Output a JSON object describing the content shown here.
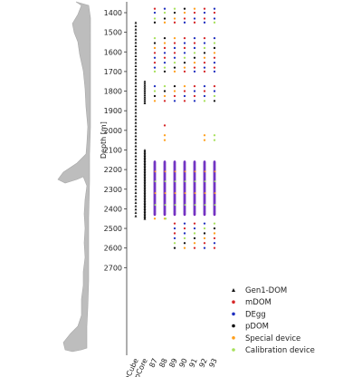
{
  "chart_data": {
    "type": "scatter",
    "ylabel": "Depth [m]",
    "ylim": [
      1380,
      2760
    ],
    "y_inverted": true,
    "y_ticks": [
      1400,
      1500,
      1600,
      1700,
      1800,
      1900,
      2000,
      2100,
      2200,
      2300,
      2400,
      2500,
      2600,
      2700
    ],
    "strings": [
      "IceCube",
      "DeepCore",
      "87",
      "88",
      "89",
      "90",
      "91",
      "92",
      "93"
    ],
    "legend": [
      {
        "name": "Gen1-DOM",
        "color": "#111111",
        "marker": "triangle"
      },
      {
        "name": "mDOM",
        "color": "#d62728",
        "marker": "dot"
      },
      {
        "name": "DEgg",
        "color": "#1f2fbf",
        "marker": "dot"
      },
      {
        "name": "pDOM",
        "color": "#111111",
        "marker": "dot"
      },
      {
        "name": "Special device",
        "color": "#ff9f1c",
        "marker": "dot"
      },
      {
        "name": "Calibration device",
        "color": "#a6e05a",
        "marker": "dot"
      }
    ],
    "legend_position": "lower-right",
    "icecube_string": {
      "from": 1450,
      "to": 2450,
      "spacing": 17,
      "device": "Gen1-DOM"
    },
    "deepcore_string": [
      {
        "from": 1750,
        "to": 1860,
        "spacing": 10,
        "device": "Gen1-DOM"
      },
      {
        "from": 2100,
        "to": 2450,
        "spacing": 7,
        "device": "Gen1-DOM"
      }
    ],
    "upgrade_top_depths": [
      1380,
      1400,
      1430,
      1450
    ],
    "upgrade_mid_depths": [
      1530,
      1555,
      1580,
      1605,
      1630,
      1655,
      1680,
      1700
    ],
    "upgrade_upper_dense_depths": [
      1775,
      1800,
      1825,
      1850
    ],
    "upgrade_dense_range": [
      2160,
      2430
    ],
    "upgrade_bottom_depths": [
      2475,
      2500,
      2525,
      2550,
      2575,
      2600
    ],
    "string_89_gap_depths": [
      1975,
      2025,
      2050
    ],
    "string_92_gap_depths": [
      2025,
      2050
    ]
  }
}
